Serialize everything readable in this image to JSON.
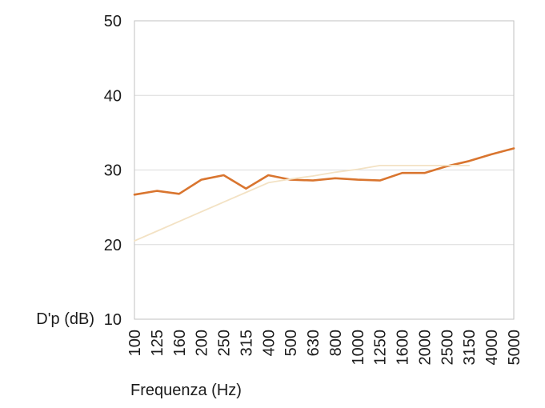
{
  "chart_data": {
    "type": "line",
    "title": "",
    "xlabel": "Frequenza (Hz)",
    "ylabel": "D'p (dB)",
    "categories": [
      "100",
      "125",
      "160",
      "200",
      "250",
      "315",
      "400",
      "500",
      "630",
      "800",
      "1000",
      "1250",
      "1600",
      "2000",
      "2500",
      "3150",
      "4000",
      "5000"
    ],
    "y_ticks": [
      10,
      20,
      30,
      40,
      50
    ],
    "ylim": [
      10,
      50
    ],
    "grid": "horizontal-only",
    "legend_position": "none",
    "plot_border": true,
    "x_tick_rotation_deg": 90,
    "series": [
      {
        "name": "series1-measured-curve",
        "color": "#d9752f",
        "stroke_width": 2.6,
        "values": [
          26.7,
          27.2,
          26.8,
          28.7,
          29.3,
          27.5,
          29.3,
          28.7,
          28.6,
          28.9,
          28.7,
          28.6,
          29.6,
          29.6,
          30.5,
          31.2,
          32.1,
          32.9
        ]
      },
      {
        "name": "series2-reference-curve",
        "color": "#f3e2c4",
        "stroke_width": 1.8,
        "values": [
          20.5,
          21.8,
          23.1,
          24.4,
          25.7,
          27.0,
          28.3,
          28.8,
          29.2,
          29.7,
          30.1,
          30.6,
          30.6,
          30.6,
          30.6,
          30.6,
          null,
          null
        ]
      }
    ],
    "colors": {
      "grid_line": "#dcdcdc",
      "plot_border": "#c2c2c2",
      "text": "#1b1b1b",
      "background": "#ffffff"
    }
  }
}
